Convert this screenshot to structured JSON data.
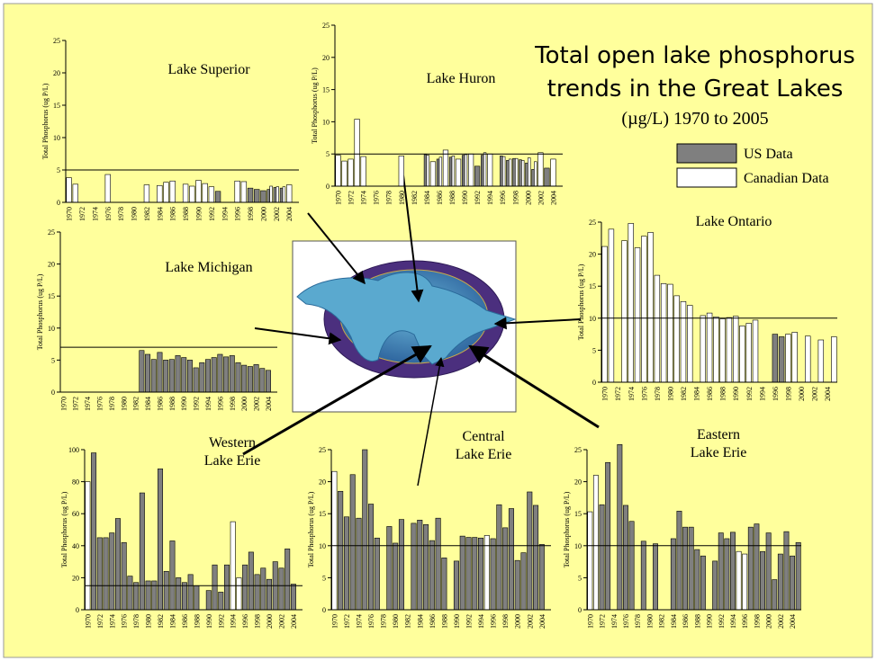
{
  "title": [
    "Total open lake phosphorus",
    "trends in the Great Lakes",
    "(µg/L) 1970 to 2005"
  ],
  "legend": [
    {
      "name": "US Data",
      "color": "#7f7f7f"
    },
    {
      "name": "Canadian Data",
      "color": "#ffffff"
    }
  ],
  "chart_data": [
    {
      "type": "bar",
      "title": [
        "Lake Superior"
      ],
      "y_label": "Total Phosphorus (ug P/L)",
      "categories": [
        "1970",
        null,
        "1972",
        null,
        "1974",
        null,
        "1976",
        null,
        "1978",
        null,
        "1980",
        null,
        "1982",
        null,
        "1984",
        null,
        "1986",
        null,
        "1988",
        null,
        "1990",
        null,
        "1992",
        null,
        "1994",
        null,
        "1996",
        null,
        "1998",
        null,
        "2000",
        null,
        "2002",
        null,
        "2004",
        null
      ],
      "series": [
        {
          "values": [
            null,
            null,
            null,
            null,
            null,
            null,
            null,
            null,
            null,
            null,
            null,
            null,
            null,
            null,
            null,
            null,
            null,
            null,
            null,
            null,
            null,
            null,
            null,
            1.7,
            null,
            null,
            null,
            null,
            2.2,
            2.0,
            1.8,
            2.0,
            2.3,
            2.2,
            null,
            null
          ]
        },
        {
          "values": [
            3.8,
            2.8,
            null,
            null,
            null,
            null,
            4.3,
            null,
            null,
            null,
            null,
            null,
            2.7,
            null,
            2.6,
            3.1,
            3.3,
            null,
            2.8,
            2.5,
            3.4,
            2.9,
            2.4,
            null,
            null,
            null,
            3.3,
            3.2,
            null,
            null,
            null,
            2.5,
            2.4,
            2.4,
            2.7,
            null
          ]
        }
      ],
      "ylim": [
        0,
        25
      ],
      "yticks": [
        0,
        5,
        10,
        15,
        20,
        25
      ],
      "target": 5
    },
    {
      "type": "bar",
      "title": [
        "Lake Huron"
      ],
      "y_label": "Total Phosphorus (ug P/L)",
      "categories": [
        "1970",
        null,
        "1972",
        null,
        "1974",
        null,
        "1976",
        null,
        "1978",
        null,
        "1980",
        null,
        "1982",
        null,
        "1984",
        null,
        "1986",
        null,
        "1988",
        null,
        "1990",
        null,
        "1992",
        null,
        "1994",
        null,
        "1996",
        null,
        "1998",
        null,
        "2000",
        null,
        "2002",
        null,
        "2004",
        null
      ],
      "series": [
        {
          "values": [
            null,
            null,
            null,
            null,
            null,
            null,
            null,
            null,
            null,
            null,
            null,
            null,
            null,
            null,
            4.9,
            null,
            4.2,
            null,
            4.5,
            null,
            4.8,
            null,
            3.1,
            4.8,
            null,
            null,
            4.7,
            4.0,
            4.3,
            4.1,
            3.6,
            2.6,
            null,
            2.8,
            null,
            null
          ]
        },
        {
          "values": [
            4.8,
            3.9,
            4.2,
            10.4,
            4.6,
            null,
            null,
            null,
            null,
            null,
            4.7,
            null,
            null,
            null,
            4.8,
            3.8,
            4.5,
            5.6,
            4.7,
            4.2,
            4.9,
            5.0,
            null,
            5.2,
            5.0,
            null,
            4.6,
            4.2,
            4.3,
            4.0,
            4.4,
            3.8,
            5.2,
            null,
            4.2,
            null
          ]
        }
      ],
      "ylim": [
        0,
        25
      ],
      "yticks": [
        0,
        5,
        10,
        15,
        20,
        25
      ],
      "target": 5
    },
    {
      "type": "bar",
      "title": [
        "Lake Michigan"
      ],
      "y_label": "Total Phosphorus (ug P/L)",
      "categories": [
        "1970",
        null,
        "1972",
        null,
        "1974",
        null,
        "1976",
        null,
        "1978",
        null,
        "1980",
        null,
        "1982",
        null,
        "1984",
        null,
        "1986",
        null,
        "1988",
        null,
        "1990",
        null,
        "1992",
        null,
        "1994",
        null,
        "1996",
        null,
        "1998",
        null,
        "2000",
        null,
        "2002",
        null,
        "2004",
        null
      ],
      "series": [
        {
          "values": [
            null,
            null,
            null,
            null,
            null,
            null,
            null,
            null,
            null,
            null,
            null,
            null,
            null,
            6.5,
            5.9,
            5.1,
            6.2,
            5.0,
            5.1,
            5.7,
            5.4,
            5.0,
            3.8,
            4.6,
            5.1,
            5.4,
            5.9,
            5.5,
            5.7,
            4.6,
            4.2,
            4.0,
            4.3,
            3.7,
            3.4,
            null
          ]
        },
        {
          "values": [
            null,
            null,
            null,
            null,
            null,
            null,
            null,
            null,
            null,
            null,
            null,
            null,
            null,
            null,
            null,
            null,
            null,
            null,
            null,
            null,
            null,
            null,
            null,
            null,
            null,
            null,
            null,
            null,
            null,
            null,
            null,
            null,
            null,
            null,
            null,
            null
          ]
        }
      ],
      "ylim": [
        0,
        25
      ],
      "yticks": [
        0,
        5,
        10,
        15,
        20,
        25
      ],
      "target": 7
    },
    {
      "type": "bar",
      "title": [
        "Lake Ontario"
      ],
      "y_label": "Total Phosphorus (ug P/L)",
      "categories": [
        "1970",
        null,
        "1972",
        null,
        "1974",
        null,
        "1976",
        null,
        "1978",
        null,
        "1980",
        null,
        "1982",
        null,
        "1984",
        null,
        "1986",
        null,
        "1988",
        null,
        "1990",
        null,
        "1992",
        null,
        "1994",
        null,
        "1996",
        null,
        "1998",
        null,
        "2000",
        null,
        "2002",
        null,
        "2004",
        null
      ],
      "series": [
        {
          "values": [
            null,
            null,
            null,
            null,
            null,
            null,
            null,
            null,
            null,
            null,
            null,
            null,
            null,
            null,
            null,
            null,
            null,
            null,
            null,
            null,
            null,
            null,
            null,
            null,
            null,
            null,
            7.5,
            7.1,
            null,
            null,
            null,
            null,
            null,
            null,
            null,
            null
          ]
        },
        {
          "values": [
            21.2,
            23.9,
            null,
            22.1,
            24.8,
            21.0,
            22.8,
            23.4,
            16.7,
            15.4,
            15.3,
            13.5,
            12.6,
            12.0,
            null,
            10.4,
            10.8,
            10.2,
            9.9,
            10.1,
            10.3,
            8.8,
            9.2,
            9.7,
            null,
            null,
            null,
            null,
            7.5,
            7.8,
            null,
            7.2,
            null,
            6.6,
            null,
            7.1
          ]
        }
      ],
      "ylim": [
        0,
        25
      ],
      "yticks": [
        0,
        5,
        10,
        15,
        20,
        25
      ],
      "target": 10
    },
    {
      "type": "bar",
      "title": [
        "Western",
        "Lake Erie"
      ],
      "y_label": "Total Phosphorus (ug P/L)",
      "categories": [
        "1970",
        null,
        "1972",
        null,
        "1974",
        null,
        "1976",
        null,
        "1978",
        null,
        "1980",
        null,
        "1982",
        null,
        "1984",
        null,
        "1986",
        null,
        "1988",
        null,
        "1990",
        null,
        "1992",
        null,
        "1994",
        null,
        "1996",
        null,
        "1998",
        null,
        "2000",
        null,
        "2002",
        null,
        "2004",
        null
      ],
      "series": [
        {
          "values": [
            null,
            98,
            45,
            45,
            48,
            57,
            42,
            21,
            17,
            73,
            18,
            18,
            88,
            24,
            43,
            20,
            17,
            22,
            15,
            null,
            12,
            28,
            11,
            28,
            null,
            null,
            28,
            36,
            22,
            26,
            19,
            30,
            26,
            38,
            16,
            null
          ]
        },
        {
          "values": [
            80,
            null,
            null,
            null,
            null,
            null,
            null,
            null,
            null,
            null,
            null,
            null,
            null,
            null,
            null,
            null,
            null,
            null,
            null,
            null,
            null,
            null,
            null,
            null,
            55,
            20,
            null,
            null,
            null,
            null,
            null,
            null,
            null,
            null,
            null,
            null
          ]
        }
      ],
      "ylim": [
        0,
        100
      ],
      "yticks": [
        0,
        20,
        40,
        60,
        80,
        100
      ],
      "target": 15
    },
    {
      "type": "bar",
      "title": [
        "Central",
        "Lake Erie"
      ],
      "y_label": "Total Phosphorus (ug P/L)",
      "categories": [
        "1970",
        null,
        "1972",
        null,
        "1974",
        null,
        "1976",
        null,
        "1978",
        null,
        "1980",
        null,
        "1982",
        null,
        "1984",
        null,
        "1986",
        null,
        "1988",
        null,
        "1990",
        null,
        "1992",
        null,
        "1994",
        null,
        "1996",
        null,
        "1998",
        null,
        "2000",
        null,
        "2002",
        null,
        "2004",
        null
      ],
      "series": [
        {
          "values": [
            null,
            18.5,
            14.5,
            21.1,
            14.3,
            25.0,
            16.5,
            11.2,
            null,
            13.0,
            10.4,
            14.1,
            null,
            13.5,
            14.0,
            13.3,
            10.8,
            14.3,
            8.1,
            null,
            7.6,
            11.5,
            11.3,
            11.3,
            11.2,
            null,
            11.1,
            16.4,
            12.8,
            15.8,
            7.7,
            8.9,
            18.4,
            16.3,
            10.2,
            null
          ]
        },
        {
          "values": [
            21.6,
            null,
            null,
            null,
            null,
            null,
            null,
            null,
            null,
            null,
            null,
            null,
            null,
            null,
            null,
            null,
            null,
            null,
            null,
            null,
            null,
            null,
            null,
            null,
            null,
            11.6,
            null,
            null,
            null,
            null,
            null,
            null,
            null,
            null,
            null,
            null
          ]
        }
      ],
      "ylim": [
        0,
        25
      ],
      "yticks": [
        0,
        5,
        10,
        15,
        20,
        25
      ],
      "target": 10
    },
    {
      "type": "bar",
      "title": [
        "Eastern",
        "Lake Erie"
      ],
      "y_label": "Total Phosphorus (ug P/L)",
      "categories": [
        "1970",
        null,
        "1972",
        null,
        "1974",
        null,
        "1976",
        null,
        "1978",
        null,
        "1980",
        null,
        "1982",
        null,
        "1984",
        null,
        "1986",
        null,
        "1988",
        null,
        "1990",
        null,
        "1992",
        null,
        "1994",
        null,
        "1996",
        null,
        "1998",
        null,
        "2000",
        null,
        "2002",
        null,
        "2004",
        null
      ],
      "series": [
        {
          "values": [
            null,
            null,
            16.4,
            23.0,
            null,
            25.8,
            16.3,
            13.8,
            null,
            10.7,
            null,
            10.3,
            null,
            null,
            11.1,
            15.4,
            12.9,
            12.9,
            9.4,
            8.4,
            null,
            7.6,
            12.0,
            11.1,
            12.1,
            null,
            null,
            12.9,
            13.4,
            9.1,
            12.0,
            4.7,
            8.7,
            12.2,
            8.4,
            10.5
          ]
        },
        {
          "values": [
            15.3,
            21.0,
            null,
            null,
            null,
            null,
            null,
            null,
            null,
            null,
            null,
            null,
            null,
            null,
            null,
            null,
            null,
            null,
            null,
            null,
            null,
            null,
            null,
            null,
            null,
            9.1,
            8.7,
            null,
            null,
            null,
            null,
            null,
            null,
            null,
            null,
            null
          ]
        }
      ],
      "ylim": [
        0,
        25
      ],
      "yticks": [
        0,
        5,
        10,
        15,
        20,
        25
      ],
      "target": 10
    }
  ]
}
